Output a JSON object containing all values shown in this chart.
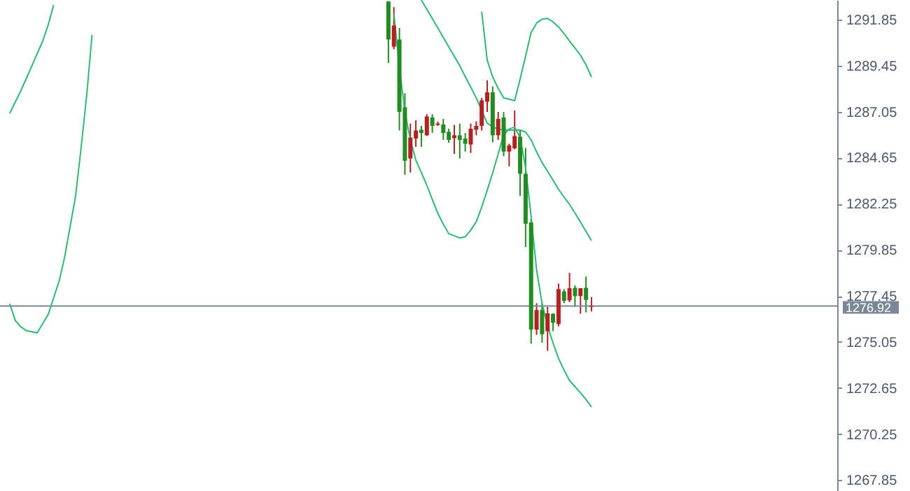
{
  "chart_data": {
    "type": "candlestick",
    "categories": [
      null,
      null,
      null,
      null,
      null,
      null,
      null,
      null,
      null,
      null,
      null,
      null,
      null,
      null,
      null,
      null,
      null,
      null,
      null,
      null,
      null,
      null,
      null,
      null,
      null,
      null,
      null,
      null,
      null,
      null,
      null,
      null,
      null,
      null,
      null,
      null,
      null,
      null,
      null,
      null,
      null,
      null,
      null,
      null,
      null,
      null,
      null,
      null,
      null,
      null,
      null,
      null,
      null,
      null,
      null,
      null,
      null,
      null,
      null,
      null,
      null,
      null,
      null,
      null,
      null,
      null,
      null,
      null,
      null,
      null,
      null,
      null,
      null,
      null,
      null,
      null,
      null,
      null,
      null,
      null,
      null,
      null,
      null,
      null,
      null,
      null,
      null,
      null,
      null,
      null,
      null,
      null,
      null,
      null,
      null,
      null,
      null,
      null,
      null,
      null,
      null,
      null,
      null,
      null,
      null,
      null,
      null,
      null,
      null,
      null,
      null,
      null,
      null,
      null,
      null,
      null,
      null,
      null,
      null,
      null,
      null,
      null,
      null,
      null,
      null,
      null,
      null,
      null,
      null,
      null,
      null,
      null,
      null,
      null,
      null,
      null,
      null,
      null,
      null,
      null,
      null,
      null,
      null,
      null,
      null,
      null,
      null,
      null,
      null,
      null
    ],
    "ohlc": [
      null,
      null,
      null,
      null,
      null,
      null,
      null,
      null,
      null,
      null,
      null,
      null,
      null,
      null,
      null,
      null,
      null,
      null,
      null,
      null,
      null,
      null,
      null,
      null,
      null,
      null,
      null,
      null,
      null,
      null,
      null,
      null,
      null,
      null,
      null,
      null,
      null,
      null,
      null,
      null,
      null,
      null,
      null,
      null,
      null,
      null,
      null,
      null,
      null,
      null,
      null,
      null,
      null,
      null,
      null,
      null,
      null,
      null,
      null,
      null,
      null,
      null,
      null,
      null,
      null,
      null,
      null,
      null,
      null,
      [
        1292.8,
        1292.8,
        1289.59,
        1290.81
      ],
      [
        1290.44,
        1292.5,
        1290.3,
        1291.54
      ],
      [
        1290.81,
        1291.41,
        1286.07,
        1287.04
      ],
      [
        1287.28,
        1288.01,
        1283.76,
        1284.49
      ],
      [
        1284.61,
        1286.43,
        1283.88,
        1285.7
      ],
      [
        1285.65,
        1286.6,
        1285.22,
        1286.07
      ],
      [
        1286.11,
        1286.31,
        1285.22,
        1285.94
      ],
      [
        1285.82,
        1286.92,
        1285.78,
        1286.8
      ],
      [
        1286.75,
        1286.92,
        1285.94,
        1286.31
      ],
      [
        1286.36,
        1286.53,
        1286.31,
        1286.43
      ],
      [
        1286.38,
        1286.67,
        1285.58,
        1285.94
      ],
      [
        1286.0,
        1286.16,
        1285.43,
        1285.58
      ],
      [
        1285.67,
        1286.36,
        1284.85,
        1285.82
      ],
      [
        1285.82,
        1286.43,
        1284.61,
        1285.58
      ],
      [
        1285.65,
        1285.94,
        1284.97,
        1285.38
      ],
      [
        1285.34,
        1286.43,
        1284.9,
        1286.16
      ],
      [
        1286.11,
        1286.55,
        1285.82,
        1286.31
      ],
      [
        1286.31,
        1287.77,
        1286.07,
        1287.64
      ],
      [
        1287.57,
        1288.69,
        1287.04,
        1288.06
      ],
      [
        1288.06,
        1288.37,
        1285.45,
        1285.82
      ],
      [
        1285.82,
        1287.04,
        1285.58,
        1286.67
      ],
      [
        1286.75,
        1287.04,
        1284.73,
        1284.97
      ],
      [
        1284.97,
        1285.38,
        1284.2,
        1285.29
      ],
      [
        1285.14,
        1287.11,
        1285.09,
        1285.78
      ],
      [
        1285.75,
        1286.07,
        1282.66,
        1283.81
      ],
      [
        1283.81,
        1285.16,
        1279.99,
        1281.21
      ],
      [
        1281.28,
        1281.45,
        1274.96,
        1275.69
      ],
      [
        1275.69,
        1277.07,
        1275.42,
        1276.71
      ],
      [
        1276.71,
        1277.07,
        1275.01,
        1275.45
      ],
      [
        1275.61,
        1276.88,
        1274.59,
        1276.54
      ],
      [
        1276.52,
        1276.54,
        1275.61,
        1276.05
      ],
      [
        1275.98,
        1278.09,
        1275.86,
        1277.8
      ],
      [
        1277.68,
        1277.8,
        1277.07,
        1277.19
      ],
      [
        1277.22,
        1278.65,
        1277.12,
        1277.85
      ],
      [
        1277.87,
        1278.0,
        1276.88,
        1277.44
      ],
      [
        1277.44,
        1277.85,
        1276.52,
        1277.85
      ],
      [
        1277.87,
        1278.46,
        1276.59,
        1277.24
      ],
      [
        1276.88,
        1277.39,
        1276.64,
        1276.92
      ],
      null,
      null,
      null,
      null,
      null,
      null,
      null,
      null,
      null,
      null,
      null,
      null,
      null,
      null,
      null,
      null,
      null,
      null,
      null,
      null,
      null,
      null,
      null,
      null,
      null,
      null,
      null,
      null,
      null,
      null,
      null,
      null,
      null,
      null,
      null,
      null,
      null,
      null,
      null,
      null,
      null,
      null,
      null
    ],
    "colors": [
      null,
      null,
      null,
      null,
      null,
      null,
      null,
      null,
      null,
      null,
      null,
      null,
      null,
      null,
      null,
      null,
      null,
      null,
      null,
      null,
      null,
      null,
      null,
      null,
      null,
      null,
      null,
      null,
      null,
      null,
      null,
      null,
      null,
      null,
      null,
      null,
      null,
      null,
      null,
      null,
      null,
      null,
      null,
      null,
      null,
      null,
      null,
      null,
      null,
      null,
      null,
      null,
      null,
      null,
      null,
      null,
      null,
      null,
      null,
      null,
      null,
      null,
      null,
      null,
      null,
      null,
      null,
      null,
      null,
      "#228b22",
      "#b22222",
      "#228b22",
      "#228b22",
      "#b22222",
      "#b22222",
      "#228b22",
      "#b22222",
      "#228b22",
      "#b22222",
      "#228b22",
      "#228b22",
      "#b22222",
      "#228b22",
      "#228b22",
      "#b22222",
      "#b22222",
      "#b22222",
      "#b22222",
      "#228b22",
      "#b22222",
      "#228b22",
      "#b22222",
      "#b22222",
      "#228b22",
      "#228b22",
      "#228b22",
      "#b22222",
      "#228b22",
      "#b22222",
      "#228b22",
      "#b22222",
      "#228b22",
      "#b22222",
      "#228b22",
      "#b22222",
      "#228b22",
      "#b22222",
      null,
      null,
      null,
      null,
      null,
      null,
      null,
      null,
      null,
      null,
      null,
      null,
      null,
      null,
      null,
      null,
      null,
      null,
      null,
      null,
      null,
      null,
      null,
      null,
      null,
      null,
      null,
      null,
      null,
      null,
      null,
      null,
      null,
      null,
      null,
      null,
      null,
      null,
      null,
      null,
      null,
      null,
      null
    ],
    "series": [
      {
        "type": "line",
        "color": "#2eb872",
        "values": [
          null,
          null,
          null,
          null,
          null,
          null,
          null,
          null,
          null,
          null,
          null,
          null,
          null,
          null,
          null,
          null,
          null,
          null,
          null,
          null,
          null,
          null,
          null,
          null,
          null,
          null,
          null,
          null,
          null,
          null,
          null,
          null,
          null,
          null,
          null,
          null,
          null,
          null,
          null,
          null,
          null,
          null,
          null,
          null,
          null,
          null,
          null,
          null,
          null,
          null,
          null,
          null,
          null,
          null,
          null,
          null,
          null,
          null,
          null,
          null,
          null,
          null,
          null,
          null,
          null,
          null,
          null,
          null,
          null,
          null,
          null,
          null,
          null,
          null,
          null,
          null,
          null,
          null,
          null,
          null,
          null,
          null,
          null,
          null,
          null,
          null,
          1292.26,
          1289.74,
          1288.86,
          1288.27,
          1287.77,
          1287.7,
          1287.62,
          1288.75,
          1289.95,
          1291.17,
          1291.67,
          1291.87,
          1291.91,
          1291.73,
          1291.47,
          1291.12,
          1290.73,
          1290.36,
          1289.99,
          1289.49,
          1288.86,
          null,
          null,
          null,
          null,
          null,
          null,
          null,
          null,
          null,
          null,
          null,
          null,
          null,
          null,
          null,
          null,
          null,
          null,
          null,
          null,
          null,
          null,
          null,
          null,
          null,
          null,
          null,
          null,
          null,
          null,
          null,
          null,
          null,
          null,
          null,
          null,
          null,
          null,
          null,
          null,
          null,
          null,
          null
        ]
      },
      {
        "type": "line",
        "color": "#2eb872",
        "values": [
          1286.96,
          1287.55,
          1288.13,
          1288.77,
          1289.42,
          1290.07,
          1290.72,
          1291.57,
          1292.61,
          null,
          null,
          null,
          null,
          null,
          null,
          null,
          null,
          null,
          null,
          null,
          null,
          null,
          null,
          null,
          null,
          null,
          null,
          null,
          null,
          null,
          null,
          null,
          null,
          null,
          null,
          null,
          null,
          null,
          null,
          null,
          null,
          null,
          null,
          null,
          null,
          null,
          null,
          null,
          null,
          null,
          null,
          null,
          null,
          null,
          null,
          null,
          null,
          null,
          null,
          null,
          null,
          null,
          null,
          null,
          null,
          null,
          null,
          null,
          null,
          null,
          null,
          null,
          null,
          null,
          null,
          1292.87,
          1292.39,
          1291.9,
          1291.41,
          1290.92,
          1290.43,
          1289.94,
          1289.44,
          1288.88,
          1288.33,
          1287.77,
          1287.11,
          1286.45,
          1286.26,
          1286.14,
          1286.1,
          1286.09,
          1286.09,
          1286.09,
          1285.99,
          1285.58,
          1284.95,
          1284.4,
          1283.94,
          1283.48,
          1283.0,
          1282.6,
          1282.22,
          1281.76,
          1281.3,
          1280.81,
          1280.33,
          null,
          null,
          null,
          null,
          null,
          null,
          null,
          null,
          null,
          null,
          null,
          null,
          null,
          null,
          null,
          null,
          null,
          null,
          null,
          null,
          null,
          null,
          null,
          null,
          null,
          null,
          null,
          null,
          null,
          null,
          null,
          null,
          null,
          null,
          null,
          null,
          null,
          null,
          null,
          null,
          null,
          null,
          null
        ]
      },
      {
        "type": "line",
        "color": "#2eb872",
        "values": [
          1277.04,
          1276.17,
          1275.84,
          1275.64,
          1275.58,
          1275.52,
          1276.0,
          1276.47,
          1277.35,
          1278.22,
          1279.46,
          1281.06,
          1282.66,
          1285.16,
          1287.84,
          1291.05,
          null,
          null,
          null,
          null,
          null,
          null,
          null,
          null,
          null,
          null,
          null,
          null,
          null,
          null,
          null,
          null,
          null,
          null,
          null,
          null,
          null,
          null,
          null,
          null,
          null,
          null,
          null,
          null,
          null,
          null,
          null,
          null,
          null,
          null,
          null,
          null,
          null,
          null,
          null,
          null,
          null,
          null,
          null,
          null,
          null,
          null,
          null,
          null,
          null,
          null,
          null,
          null,
          null,
          null,
          1292.14,
          1289.37,
          1287.04,
          1285.58,
          1284.52,
          1283.88,
          1283.21,
          1282.48,
          1281.75,
          1281.19,
          1280.69,
          1280.58,
          1280.47,
          1280.53,
          1280.88,
          1281.31,
          1282.08,
          1282.95,
          1283.86,
          1284.85,
          1285.84,
          1286.15,
          1286.24,
          1285.71,
          1284.13,
          1281.6,
          1278.8,
          1277.04,
          1275.88,
          1274.99,
          1274.19,
          1273.58,
          1273.04,
          1272.72,
          1272.4,
          1272.05,
          1271.66,
          null,
          null,
          null,
          null,
          null,
          null,
          null,
          null,
          null,
          null,
          null,
          null,
          null,
          null,
          null,
          null,
          null,
          null,
          null,
          null,
          null,
          null,
          null,
          null,
          null,
          null,
          null,
          null,
          null,
          null,
          null,
          null,
          null,
          null,
          null,
          null,
          null,
          null,
          null,
          null,
          null,
          null,
          null
        ]
      }
    ],
    "ylim": [
      1267.28,
      1292.87
    ],
    "yticks": [
      1267.85,
      1270.25,
      1272.65,
      1275.05,
      1277.45,
      1279.85,
      1282.25,
      1284.65,
      1287.05,
      1289.45,
      1291.85
    ],
    "ref_lines": [
      {
        "axis": "y",
        "value": 1276.92,
        "label": "1276.92",
        "color": "#7a8796"
      }
    ],
    "tick_labels": "y",
    "grid": false,
    "marker": "none"
  }
}
